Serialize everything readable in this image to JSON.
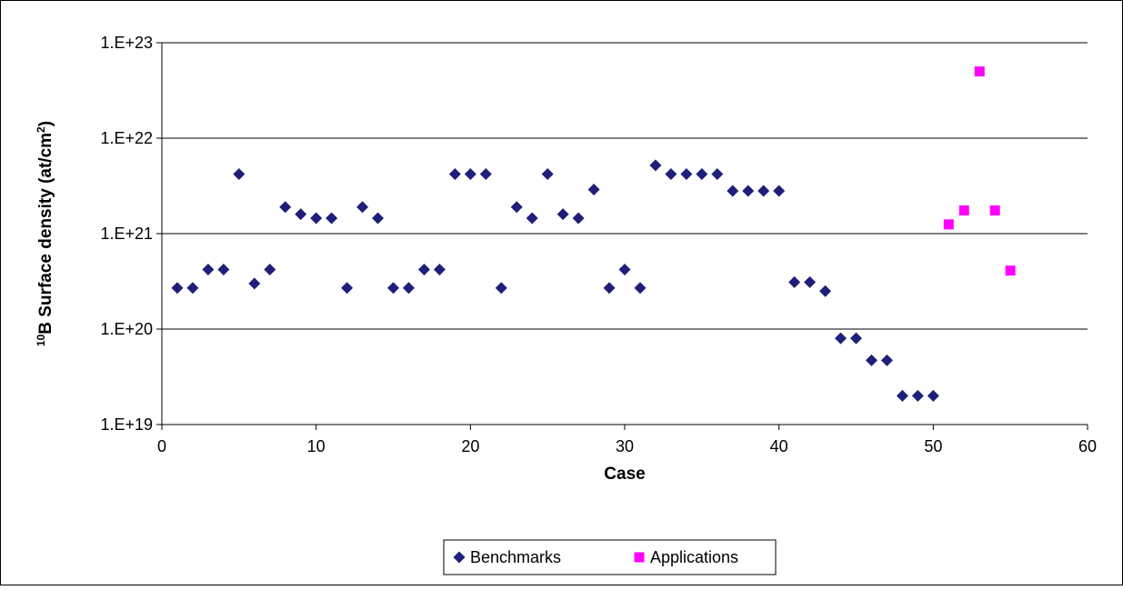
{
  "chart_data": {
    "type": "scatter",
    "xlabel": "Case",
    "ylabel": "¹⁰B Surface density (at/cm²)",
    "ylabel_parts": {
      "pre_sup": "10",
      "main": "B Surface density (at/cm",
      "unit_sup": "2",
      "close": ")"
    },
    "x_axis": {
      "min": 0,
      "max": 60,
      "ticks": [
        0,
        10,
        20,
        30,
        40,
        50,
        60
      ],
      "tick_labels": [
        "0",
        "10",
        "20",
        "30",
        "40",
        "50",
        "60"
      ]
    },
    "y_axis": {
      "scale": "log",
      "min": 1e+19,
      "max": 1e+23,
      "ticks": [
        1e+19,
        1e+20,
        1e+21,
        1e+22,
        1e+23
      ],
      "tick_labels": [
        "1.E+19",
        "1.E+20",
        "1.E+21",
        "1.E+22",
        "1.E+23"
      ]
    },
    "grid": {
      "horizontal": true,
      "vertical": false
    },
    "legend_position": "bottom",
    "series": [
      {
        "name": "Benchmarks",
        "marker": "diamond",
        "color": "#1f1f7a",
        "x": [
          1,
          2,
          3,
          4,
          5,
          6,
          7,
          8,
          9,
          10,
          11,
          12,
          13,
          14,
          15,
          16,
          17,
          18,
          19,
          20,
          21,
          22,
          23,
          24,
          25,
          26,
          27,
          28,
          29,
          30,
          31,
          32,
          33,
          34,
          35,
          36,
          37,
          38,
          39,
          40,
          41,
          42,
          43,
          44,
          45,
          46,
          47,
          48,
          49,
          50
        ],
        "y": [
          2.7e+20,
          2.7e+20,
          4.2e+20,
          4.2e+20,
          4.2e+21,
          3e+20,
          4.2e+20,
          1.9e+21,
          1.6e+21,
          1.45e+21,
          1.45e+21,
          2.7e+20,
          1.9e+21,
          1.45e+21,
          2.7e+20,
          2.7e+20,
          4.2e+20,
          4.2e+20,
          4.2e+21,
          4.2e+21,
          4.2e+21,
          2.7e+20,
          1.9e+21,
          1.45e+21,
          4.2e+21,
          1.6e+21,
          1.45e+21,
          2.9e+21,
          2.7e+20,
          4.2e+20,
          2.7e+20,
          5.2e+21,
          4.2e+21,
          4.2e+21,
          4.2e+21,
          4.2e+21,
          2.8e+21,
          2.8e+21,
          2.8e+21,
          2.8e+21,
          3.1e+20,
          3.1e+20,
          2.5e+20,
          8e+19,
          8e+19,
          4.7e+19,
          4.7e+19,
          2e+19,
          2e+19,
          2e+19
        ]
      },
      {
        "name": "Applications",
        "marker": "square",
        "color": "#ff00ff",
        "x": [
          51,
          52,
          53,
          54,
          55
        ],
        "y": [
          1.25e+21,
          1.75e+21,
          5e+22,
          1.75e+21,
          4.1e+20
        ]
      }
    ]
  }
}
